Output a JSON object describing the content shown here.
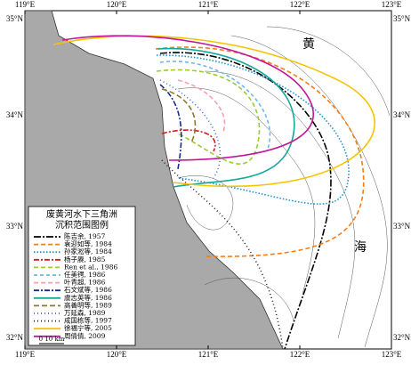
{
  "map": {
    "lon_labels": [
      "119°E",
      "120°E",
      "121°E",
      "122°E",
      "123°E"
    ],
    "lat_labels": [
      "35°N",
      "34°N",
      "33°N",
      "32°N"
    ],
    "sea_labels": [
      "黄",
      "海"
    ],
    "legend": {
      "title": "废黄河水下三角洲\n沉积范围图例",
      "entries": [
        {
          "name": "陈吉余, 1957",
          "color": "#000000"
        },
        {
          "name": "袁迎如等, 1984",
          "color": "#f07f1a"
        },
        {
          "name": "孙家淞等, 1984",
          "color": "#1e90d0"
        },
        {
          "name": "杨子赓, 1985",
          "color": "#d01c1c"
        },
        {
          "name": "Ren et al., 1986",
          "color": "#9acd32"
        },
        {
          "name": "任美锷, 1986",
          "color": "#6fb7e8"
        },
        {
          "name": "叶青超, 1986",
          "color": "#f4a0b0"
        },
        {
          "name": "石文斌等, 1986",
          "color": "#1a2a8c"
        },
        {
          "name": "虞志英等, 1986",
          "color": "#17a89a"
        },
        {
          "name": "高善明等, 1989",
          "color": "#8c7a2a"
        },
        {
          "name": "万延森, 1989",
          "color": "#3a6fd8"
        },
        {
          "name": "成国栋等, 1997",
          "color": "#222222"
        },
        {
          "name": "徐福宁等, 2005",
          "color": "#f5c400"
        },
        {
          "name": "周倩倩, 2009",
          "color": "#c0179a"
        }
      ],
      "scale": "0  10 km"
    }
  }
}
